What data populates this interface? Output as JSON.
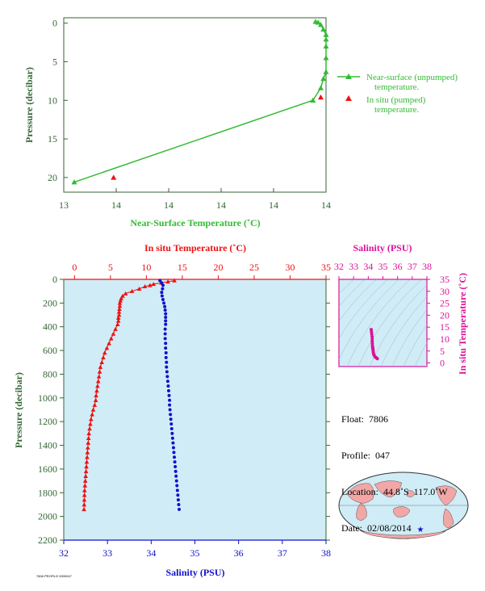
{
  "chart_data": [
    {
      "type": "line",
      "xlabel": "Near-Surface Temperature (˚C)",
      "ylabel": "Pressure (decibar)",
      "xticks": [
        "13",
        "14",
        "14",
        "14",
        "14",
        "14"
      ],
      "yticks": [
        "0",
        "5",
        "10",
        "15",
        "20"
      ],
      "xlim": [
        13.0,
        14.0
      ],
      "ylim": [
        21.9,
        -0.7
      ],
      "series": [
        {
          "name": "Near-surface (unpumped) temperature.",
          "color": "#33bb33",
          "marker": "triangle",
          "points": [
            [
              13.04,
              20.6
            ],
            [
              13.95,
              10.0
            ],
            [
              13.98,
              8.4
            ],
            [
              13.99,
              7.2
            ],
            [
              14.0,
              6.3
            ],
            [
              14.0,
              4.5
            ],
            [
              14.0,
              3.0
            ],
            [
              14.0,
              2.1
            ],
            [
              14.0,
              1.5
            ],
            [
              13.99,
              0.8
            ],
            [
              13.98,
              0.2
            ],
            [
              13.97,
              -0.1
            ],
            [
              13.96,
              -0.2
            ]
          ]
        },
        {
          "name": "In situ (pumped) temperature.",
          "color": "#ee1111",
          "marker": "triangle",
          "points": [
            [
              13.19,
              20.0
            ],
            [
              13.98,
              9.6
            ]
          ]
        }
      ]
    },
    {
      "type": "scatter",
      "title": "In situ Temperature (˚C)",
      "ylabel": "Pressure (decibar)",
      "xlabel": "Salinity (PSU)",
      "temp_ticks": [
        "0",
        "5",
        "10",
        "15",
        "20",
        "25",
        "30",
        "35"
      ],
      "sal_ticks": [
        "32",
        "33",
        "34",
        "35",
        "36",
        "37",
        "38"
      ],
      "pressure_ticks": [
        "0",
        "200",
        "400",
        "600",
        "800",
        "1000",
        "1200",
        "1400",
        "1600",
        "1800",
        "2000",
        "2200"
      ],
      "temp_lim": [
        -1.5,
        35
      ],
      "sal_lim": [
        32,
        38
      ],
      "pressure_lim": [
        0,
        2200
      ],
      "series": [
        {
          "name": "In situ Temperature",
          "color": "#ee1111",
          "points_temp_pressure": [
            [
              13.9,
              10
            ],
            [
              13.0,
              20
            ],
            [
              12.1,
              30
            ],
            [
              11.0,
              40
            ],
            [
              10.5,
              50
            ],
            [
              9.8,
              60
            ],
            [
              9.0,
              80
            ],
            [
              8.0,
              100
            ],
            [
              7.1,
              120
            ],
            [
              6.7,
              140
            ],
            [
              6.5,
              160
            ],
            [
              6.4,
              180
            ],
            [
              6.3,
              200
            ],
            [
              6.3,
              225
            ],
            [
              6.25,
              250
            ],
            [
              6.2,
              275
            ],
            [
              6.2,
              300
            ],
            [
              6.1,
              325
            ],
            [
              6.1,
              350
            ],
            [
              6.0,
              380
            ],
            [
              5.7,
              420
            ],
            [
              5.4,
              460
            ],
            [
              5.1,
              500
            ],
            [
              4.8,
              540
            ],
            [
              4.5,
              580
            ],
            [
              4.2,
              620
            ],
            [
              4.0,
              660
            ],
            [
              3.8,
              700
            ],
            [
              3.6,
              740
            ],
            [
              3.5,
              780
            ],
            [
              3.4,
              820
            ],
            [
              3.3,
              860
            ],
            [
              3.2,
              900
            ],
            [
              3.1,
              940
            ],
            [
              3.0,
              980
            ],
            [
              2.95,
              1020
            ],
            [
              2.8,
              1060
            ],
            [
              2.6,
              1100
            ],
            [
              2.45,
              1140
            ],
            [
              2.3,
              1180
            ],
            [
              2.2,
              1220
            ],
            [
              2.1,
              1260
            ],
            [
              2.0,
              1300
            ],
            [
              1.95,
              1340
            ],
            [
              1.9,
              1380
            ],
            [
              1.85,
              1420
            ],
            [
              1.8,
              1460
            ],
            [
              1.75,
              1500
            ],
            [
              1.7,
              1540
            ],
            [
              1.65,
              1580
            ],
            [
              1.6,
              1620
            ],
            [
              1.55,
              1660
            ],
            [
              1.5,
              1700
            ],
            [
              1.45,
              1740
            ],
            [
              1.4,
              1780
            ],
            [
              1.38,
              1820
            ],
            [
              1.36,
              1860
            ],
            [
              1.34,
              1900
            ],
            [
              1.32,
              1940
            ]
          ]
        },
        {
          "name": "Salinity",
          "color": "#1111cc",
          "points_sal_pressure": [
            [
              34.2,
              10
            ],
            [
              34.24,
              30
            ],
            [
              34.27,
              50
            ],
            [
              34.26,
              80
            ],
            [
              34.24,
              110
            ],
            [
              34.25,
              140
            ],
            [
              34.27,
              170
            ],
            [
              34.29,
              200
            ],
            [
              34.31,
              230
            ],
            [
              34.32,
              260
            ],
            [
              34.33,
              290
            ],
            [
              34.33,
              320
            ],
            [
              34.33,
              350
            ],
            [
              34.33,
              380
            ],
            [
              34.32,
              420
            ],
            [
              34.32,
              460
            ],
            [
              34.32,
              500
            ],
            [
              34.33,
              540
            ],
            [
              34.33,
              580
            ],
            [
              34.34,
              620
            ],
            [
              34.34,
              660
            ],
            [
              34.35,
              700
            ],
            [
              34.35,
              740
            ],
            [
              34.36,
              780
            ],
            [
              34.37,
              820
            ],
            [
              34.38,
              860
            ],
            [
              34.39,
              900
            ],
            [
              34.4,
              940
            ],
            [
              34.41,
              980
            ],
            [
              34.42,
              1020
            ],
            [
              34.42,
              1060
            ],
            [
              34.43,
              1100
            ],
            [
              34.44,
              1140
            ],
            [
              34.45,
              1180
            ],
            [
              34.46,
              1220
            ],
            [
              34.47,
              1260
            ],
            [
              34.48,
              1300
            ],
            [
              34.49,
              1340
            ],
            [
              34.5,
              1380
            ],
            [
              34.51,
              1420
            ],
            [
              34.52,
              1460
            ],
            [
              34.53,
              1500
            ],
            [
              34.54,
              1540
            ],
            [
              34.55,
              1580
            ],
            [
              34.56,
              1620
            ],
            [
              34.57,
              1660
            ],
            [
              34.58,
              1700
            ],
            [
              34.59,
              1740
            ],
            [
              34.6,
              1780
            ],
            [
              34.61,
              1820
            ],
            [
              34.62,
              1860
            ],
            [
              34.63,
              1900
            ],
            [
              34.64,
              1940
            ]
          ]
        }
      ]
    },
    {
      "type": "scatter",
      "title": "Salinity (PSU)",
      "ylabel": "In situ Temperature (˚C)",
      "xticks": [
        "32",
        "33",
        "34",
        "35",
        "36",
        "37",
        "38"
      ],
      "yticks": [
        "0",
        "5",
        "10",
        "15",
        "20",
        "25",
        "30",
        "35"
      ],
      "xlim": [
        32,
        38
      ],
      "ylim": [
        -1.5,
        35
      ],
      "grid": true,
      "color": "#dd1199",
      "points": [
        [
          34.2,
          14.0
        ],
        [
          34.22,
          13.0
        ],
        [
          34.24,
          12.0
        ],
        [
          34.26,
          11.0
        ],
        [
          34.27,
          10.0
        ],
        [
          34.27,
          9.0
        ],
        [
          34.28,
          8.0
        ],
        [
          34.29,
          7.0
        ],
        [
          34.3,
          6.5
        ],
        [
          34.31,
          6.2
        ],
        [
          34.32,
          5.8
        ],
        [
          34.33,
          5.2
        ],
        [
          34.34,
          4.6
        ],
        [
          34.36,
          4.0
        ],
        [
          34.38,
          3.5
        ],
        [
          34.42,
          3.0
        ],
        [
          34.46,
          2.6
        ],
        [
          34.52,
          2.3
        ],
        [
          34.58,
          2.0
        ],
        [
          34.62,
          1.8
        ]
      ]
    }
  ],
  "legend": {
    "line1": "Near-surface (unpumped)",
    "line1b": "temperature.",
    "line2": "In situ (pumped)",
    "line2b": "temperature."
  },
  "info": {
    "float_label": "Float:",
    "float_value": "7806",
    "profile_label": "Profile:",
    "profile_value": "047",
    "location_label": "Location:",
    "location_value": "44.8˚S  117.0˚W",
    "date_label": "Date:",
    "date_value": "02/08/2014"
  },
  "footer": {
    "stamp": "7806 PROFILE 0000047"
  },
  "colors": {
    "near_surface": "#33bb33",
    "in_situ": "#ee1111",
    "salinity": "#1111cc",
    "ts": "#dd1199",
    "axis_text": "#336633",
    "water": "#d0ecf6",
    "land": "#f3a6a6"
  }
}
